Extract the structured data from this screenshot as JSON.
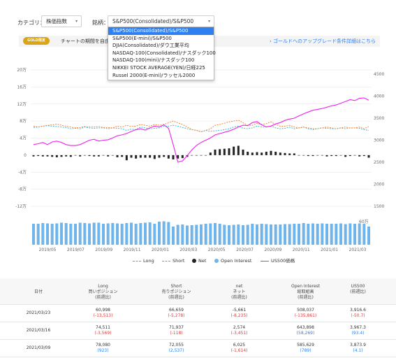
{
  "filters": {
    "category_label": "カテゴリ：",
    "category_value": "株価指数",
    "symbol_label": "銘柄：",
    "symbol_value": "S&P500(Consolidated)/S&P500"
  },
  "dropdown_options": [
    "S&P500(Consolidated)/S&P500",
    "S&P500(E-mini)/S&P500",
    "DJIA(Consolidated)/ダウ工業平均",
    "NASDAQ-100(Consolidated)/ナスダック100",
    "NASDAQ-100(mini)/ナスダック100",
    "NIKKEI STOCK AVERAGE(YEN)/日経225",
    "Russel 2000(E-mini)/ラッセル2000"
  ],
  "gold": {
    "badge": "GOLD限定",
    "text": "チャートの期間を自由に",
    "link": "ゴールドへのアップグレード条件詳細はこちら"
  },
  "chart_data": {
    "type": "line",
    "left_axis_ticks": [
      "20万",
      "16万",
      "12万",
      "8万",
      "4万",
      "0",
      "-4万",
      "-8万",
      "-12万"
    ],
    "right_axis_ticks": [
      "4500",
      "4000",
      "3500",
      "3000",
      "2500",
      "2000",
      "1500"
    ],
    "oi_top_label": "60万",
    "x_ticks": [
      "2019/05",
      "2019/07",
      "2019/09",
      "2019/11",
      "2020/01",
      "2020/03",
      "2020/05",
      "2020/07",
      "2020/09",
      "2020/11",
      "2021/01",
      "2021/03"
    ],
    "long": [
      65,
      66,
      68,
      69,
      68,
      67,
      66,
      65,
      62,
      63,
      62,
      66,
      64,
      63,
      64,
      64,
      62,
      64,
      63,
      62,
      58,
      61,
      60,
      66,
      64,
      62,
      63,
      64,
      68,
      68,
      70,
      68,
      65,
      62,
      60,
      58,
      55,
      58,
      56,
      57,
      58,
      60,
      62,
      66,
      68,
      63,
      62,
      64,
      68,
      66,
      66,
      68,
      64,
      62,
      63,
      66,
      62,
      64,
      66,
      62,
      60,
      62,
      64,
      63,
      62,
      62,
      64,
      62,
      64,
      64,
      63,
      60,
      58
    ],
    "short": [
      68,
      66,
      68,
      70,
      71,
      73,
      70,
      68,
      66,
      64,
      65,
      67,
      66,
      66,
      67,
      65,
      65,
      64,
      68,
      66,
      70,
      67,
      68,
      72,
      70,
      68,
      72,
      70,
      72,
      76,
      80,
      76,
      72,
      66,
      60,
      58,
      55,
      58,
      62,
      70,
      72,
      75,
      78,
      80,
      82,
      76,
      70,
      70,
      75,
      72,
      74,
      78,
      72,
      68,
      68,
      70,
      66,
      64,
      66,
      64,
      62,
      62,
      64,
      66,
      64,
      62,
      64,
      66,
      64,
      64,
      66,
      62,
      67
    ],
    "net": [
      -3,
      -2,
      -3,
      -3,
      -4,
      -5,
      -4,
      -3,
      -4,
      -1,
      -3,
      -1,
      -2,
      -3,
      -3,
      -1,
      -3,
      0,
      -5,
      -4,
      -12,
      -6,
      -8,
      -6,
      -6,
      -6,
      -9,
      -6,
      -4,
      -8,
      -10,
      -8,
      -7,
      -4,
      0,
      0,
      0,
      0,
      6,
      13,
      14,
      15,
      16,
      20,
      22,
      13,
      8,
      6,
      7,
      6,
      8,
      10,
      8,
      6,
      5,
      4,
      4,
      0,
      -1,
      -2,
      -2,
      -1,
      0,
      -3,
      -2,
      -2,
      0,
      -4,
      -2,
      -1,
      -3,
      -2,
      -6
    ],
    "open_interest": [
      60,
      60,
      62,
      61,
      60,
      61,
      63,
      62,
      60,
      60,
      63,
      62,
      61,
      63,
      63,
      60,
      61,
      62,
      61,
      60,
      62,
      63,
      60,
      62,
      63,
      64,
      60,
      66,
      67,
      65,
      52,
      57,
      58,
      55,
      56,
      57,
      58,
      60,
      61,
      62,
      60,
      57,
      56,
      57,
      58,
      56,
      57,
      60,
      58,
      60,
      59,
      58,
      58,
      58,
      59,
      59,
      60,
      60,
      62,
      60,
      61,
      60,
      61,
      60,
      60,
      60,
      61,
      59,
      61,
      60,
      61,
      60,
      52
    ],
    "us500": [
      2900,
      2920,
      2950,
      2900,
      2960,
      2980,
      2950,
      2900,
      2880,
      2880,
      2900,
      2950,
      3000,
      3020,
      2980,
      3000,
      3010,
      3050,
      3100,
      3120,
      3150,
      3200,
      3240,
      3260,
      3230,
      3280,
      3320,
      3300,
      3350,
      3270,
      2900,
      2500,
      2530,
      2650,
      2780,
      2880,
      2950,
      3000,
      3050,
      3120,
      3150,
      3180,
      3210,
      3250,
      3300,
      3340,
      3330,
      3400,
      3420,
      3350,
      3300,
      3320,
      3370,
      3400,
      3450,
      3480,
      3500,
      3550,
      3600,
      3640,
      3680,
      3700,
      3720,
      3750,
      3780,
      3800,
      3840,
      3880,
      3920,
      3900,
      3950,
      3960,
      3910
    ]
  },
  "legend": {
    "long": "Long",
    "short": "Short",
    "net": "Net",
    "oi": "Open Interest",
    "us500": "US500価格"
  },
  "colors": {
    "long": "#29b6d1",
    "short": "#f47b20",
    "net": "#222222",
    "oi": "#6fb4ea",
    "us500": "#ee22ee"
  },
  "table": {
    "headers": [
      {
        "l1": "日付",
        "l2": "",
        "l3": ""
      },
      {
        "l1": "Long",
        "l2": "買いポジション",
        "l3": "(前週比)"
      },
      {
        "l1": "Short",
        "l2": "売りポジション",
        "l3": "(前週比)"
      },
      {
        "l1": "net",
        "l2": "ネット",
        "l3": "(前週比)"
      },
      {
        "l1": "Open Interest",
        "l2": "総取組高",
        "l3": "(前週比)"
      },
      {
        "l1": "US500",
        "l2": "(前週比)",
        "l3": ""
      }
    ],
    "rows": [
      {
        "date": "2021/03/23",
        "long": "60,998",
        "long_d": "(-13,513)",
        "short": "66,659",
        "short_d": "(-5,278)",
        "net": "-5,661",
        "net_d": "(-8,235)",
        "oi": "508,037",
        "oi_d": "(-135,861)",
        "us": "3,916.6",
        "us_d": "(-50.7)"
      },
      {
        "date": "2021/03/16",
        "long": "74,511",
        "long_d": "(-3,569)",
        "short": "71,937",
        "short_d": "(-118)",
        "net": "2,574",
        "net_d": "(-3,451)",
        "oi": "643,898",
        "oi_d": "(58,269)",
        "us": "3,967.3",
        "us_d": "(93.4)"
      },
      {
        "date": "2021/03/09",
        "long": "78,080",
        "long_d": "(923)",
        "short": "72,055",
        "short_d": "(2,537)",
        "net": "6,025",
        "net_d": "(-1,614)",
        "oi": "585,629",
        "oi_d": "(789)",
        "us": "3,873.9",
        "us_d": "(4.1)"
      }
    ]
  }
}
